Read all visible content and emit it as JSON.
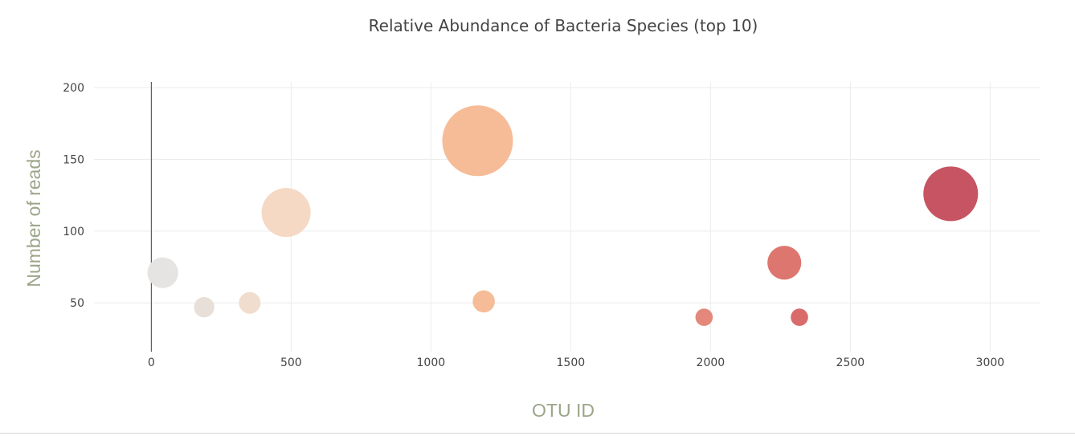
{
  "chart_data": {
    "type": "scatter",
    "title": "Relative Abundance of Bacteria Species (top 10)",
    "xlabel": "OTU ID",
    "ylabel": "Number of reads",
    "xlim": [
      -205,
      3180
    ],
    "ylim": [
      16,
      204
    ],
    "xticks": [
      0,
      500,
      1000,
      1500,
      2000,
      2500,
      3000
    ],
    "yticks": [
      50,
      100,
      150,
      200
    ],
    "grid": true,
    "label_color": "#9ca58a",
    "points": [
      {
        "x": 41,
        "y": 71,
        "size": 71,
        "color": "#e6e4e3"
      },
      {
        "x": 189,
        "y": 47,
        "size": 47,
        "color": "#e8dfd9"
      },
      {
        "x": 352,
        "y": 50,
        "size": 50,
        "color": "#f0ddce"
      },
      {
        "x": 482,
        "y": 113,
        "size": 113,
        "color": "#f5d9c5"
      },
      {
        "x": 1167,
        "y": 163,
        "size": 163,
        "color": "#f6bc98"
      },
      {
        "x": 1189,
        "y": 51,
        "size": 51,
        "color": "#f6bc98"
      },
      {
        "x": 1977,
        "y": 40,
        "size": 40,
        "color": "#e3887a"
      },
      {
        "x": 2264,
        "y": 78,
        "size": 78,
        "color": "#dd766f"
      },
      {
        "x": 2318,
        "y": 40,
        "size": 40,
        "color": "#d96c6b"
      },
      {
        "x": 2859,
        "y": 126,
        "size": 126,
        "color": "#c75462"
      }
    ]
  }
}
